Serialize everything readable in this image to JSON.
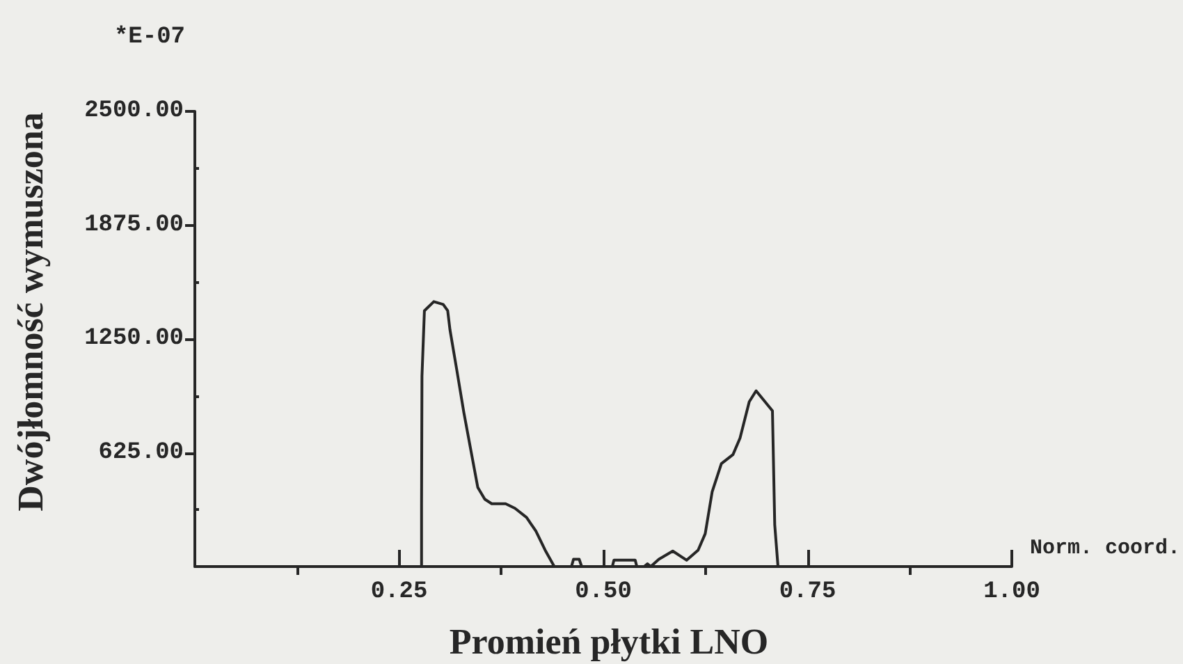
{
  "chart_data": {
    "type": "line",
    "xlabel": "Promień płytki LNO",
    "ylabel": "Dwójłomność wymuszona",
    "annotations": [
      "*E-07",
      "Norm. coord."
    ],
    "x": [
      0.2775,
      0.2775,
      0.278,
      0.281,
      0.2925,
      0.304,
      0.3095,
      0.3123,
      0.3208,
      0.3293,
      0.3378,
      0.3463,
      0.3549,
      0.3634,
      0.3804,
      0.3918,
      0.406,
      0.4174,
      0.4288,
      0.44,
      0.461,
      0.4635,
      0.4705,
      0.4735,
      0.511,
      0.513,
      0.539,
      0.541,
      0.55,
      0.554,
      0.558,
      0.568,
      0.585,
      0.602,
      0.616,
      0.6247,
      0.6332,
      0.6445,
      0.6587,
      0.6673,
      0.6786,
      0.687,
      0.707,
      0.7098,
      0.7138
    ],
    "series": [
      {
        "color": "#262626",
        "values": [
          0,
          335,
          1045,
          1405,
          1455,
          1440,
          1405,
          1300,
          1075,
          845,
          640,
          435,
          370,
          345,
          345,
          320,
          270,
          195,
          90,
          0,
          0,
          40,
          40,
          0,
          0,
          35,
          35,
          0,
          0,
          15,
          0,
          40,
          85,
          35,
          90,
          180,
          410,
          565,
          615,
          705,
          905,
          965,
          855,
          230,
          0
        ]
      }
    ],
    "xlim": [
      0,
      1
    ],
    "xticks": [
      {
        "value": 0.125,
        "label": null
      },
      {
        "value": 0.25,
        "label": "0.25"
      },
      {
        "value": 0.375,
        "label": null
      },
      {
        "value": 0.5,
        "label": "0.50"
      },
      {
        "value": 0.625,
        "label": null
      },
      {
        "value": 0.75,
        "label": "0.75"
      },
      {
        "value": 0.875,
        "label": null
      },
      {
        "value": 1,
        "label": "1.00"
      }
    ],
    "ylim": [
      0,
      2500
    ],
    "yticks": [
      {
        "value": 312.5,
        "label": null
      },
      {
        "value": 625,
        "label": "625.00"
      },
      {
        "value": 937.5,
        "label": null
      },
      {
        "value": 1250,
        "label": "1250.00"
      },
      {
        "value": 1562.5,
        "label": null
      },
      {
        "value": 1875,
        "label": "1875.00"
      },
      {
        "value": 2187.5,
        "label": null
      },
      {
        "value": 2500,
        "label": "2500.00"
      }
    ]
  }
}
